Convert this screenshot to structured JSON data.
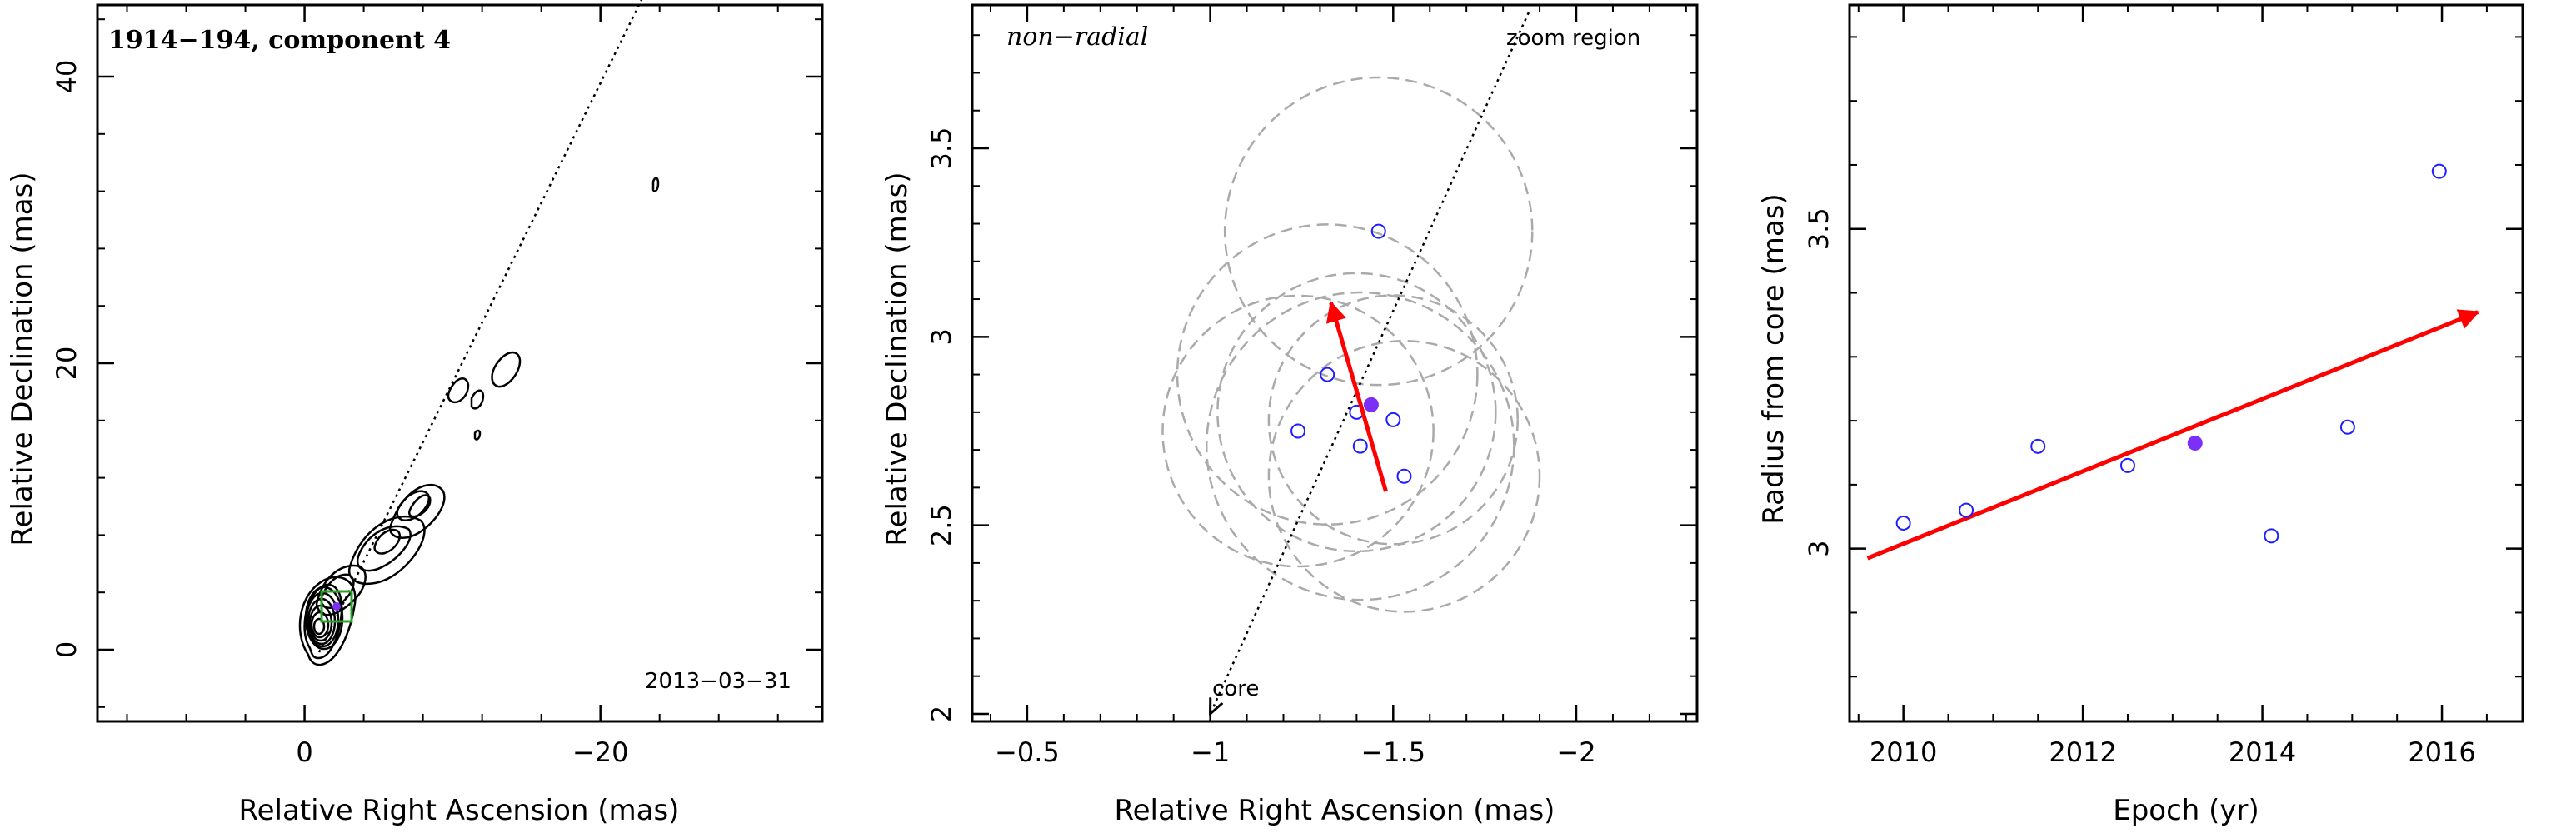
{
  "chart_data": [
    {
      "type": "contour",
      "title": "1914−194, component 4",
      "date": "2013−03−31",
      "xlabel": "Relative Right Ascension (mas)",
      "ylabel": "Relative Declination (mas)",
      "xlim": [
        14,
        -35
      ],
      "ylim": [
        -5,
        45
      ],
      "x_ticks": [
        0,
        -20
      ],
      "x_tick_labels": [
        "0",
        "−20"
      ],
      "y_ticks": [
        0,
        20,
        40
      ],
      "y_tick_labels": [
        "0",
        "20",
        "40"
      ],
      "component_position": [
        -1.44,
        2.82
      ],
      "zoom_box": {
        "x": [
          -0.5,
          -2.5
        ],
        "y": [
          2,
          4
        ]
      },
      "jet_axis": {
        "from": [
          0,
          0
        ],
        "to": [
          -22,
          45
        ]
      },
      "colors": {
        "contour": "#000000",
        "zoom_box": "#2ca02c",
        "component": "#7b2ff7"
      }
    },
    {
      "type": "scatter",
      "corner_label": "non−radial",
      "box_label": "zoom region",
      "core_label": "core",
      "xlabel": "Relative Right Ascension (mas)",
      "ylabel": "Relative Declination (mas)",
      "xlim": [
        -0.35,
        -2.33
      ],
      "ylim": [
        1.98,
        3.88
      ],
      "x_ticks": [
        -0.5,
        -1,
        -1.5,
        -2
      ],
      "x_tick_labels": [
        "−0.5",
        "−1",
        "−1.5",
        "−2"
      ],
      "y_ticks": [
        2,
        2.5,
        3,
        3.5
      ],
      "y_tick_labels": [
        "2",
        "2.5",
        "3",
        "3.5"
      ],
      "points": [
        {
          "x": -1.46,
          "y": 3.28
        },
        {
          "x": -1.32,
          "y": 2.9
        },
        {
          "x": -1.4,
          "y": 2.8
        },
        {
          "x": -1.24,
          "y": 2.75
        },
        {
          "x": -1.5,
          "y": 2.78
        },
        {
          "x": -1.41,
          "y": 2.71
        },
        {
          "x": -1.53,
          "y": 2.63
        }
      ],
      "mean_point": {
        "x": -1.44,
        "y": 2.82
      },
      "error_circles": [
        {
          "x": -1.46,
          "y": 3.28,
          "r": 0.42
        },
        {
          "x": -1.32,
          "y": 2.9,
          "r": 0.41
        },
        {
          "x": -1.4,
          "y": 2.8,
          "r": 0.38
        },
        {
          "x": -1.24,
          "y": 2.75,
          "r": 0.37
        },
        {
          "x": -1.5,
          "y": 2.78,
          "r": 0.34
        },
        {
          "x": -1.41,
          "y": 2.71,
          "r": 0.42
        },
        {
          "x": -1.53,
          "y": 2.63,
          "r": 0.37
        }
      ],
      "motion_arrow": {
        "from": [
          -1.48,
          2.59
        ],
        "to": [
          -1.33,
          3.09
        ]
      },
      "jet_axis": {
        "from": [
          -1.87,
          3.86
        ],
        "to": [
          -1.0,
          2.0
        ]
      },
      "colors": {
        "points": "#1f1fff",
        "mean": "#7b2ff7",
        "arrow": "#ff0000",
        "circles": "#aaaaaa"
      }
    },
    {
      "type": "scatter",
      "xlabel": "Epoch (yr)",
      "ylabel": "Radius from core (mas)",
      "xlim": [
        2009.4,
        2016.9
      ],
      "ylim": [
        2.73,
        3.85
      ],
      "x_ticks": [
        2010,
        2012,
        2014,
        2016
      ],
      "x_tick_labels": [
        "2010",
        "2012",
        "2014",
        "2016"
      ],
      "y_ticks": [
        3,
        3.5
      ],
      "y_tick_labels": [
        "3",
        "3.5"
      ],
      "points": [
        {
          "x": 2010.0,
          "y": 3.04
        },
        {
          "x": 2010.7,
          "y": 3.06
        },
        {
          "x": 2011.5,
          "y": 3.16
        },
        {
          "x": 2012.5,
          "y": 3.13
        },
        {
          "x": 2014.1,
          "y": 3.02
        },
        {
          "x": 2014.95,
          "y": 3.19
        },
        {
          "x": 2015.97,
          "y": 3.59
        }
      ],
      "mean_point": {
        "x": 2013.25,
        "y": 3.165
      },
      "fit_arrow": {
        "from": [
          2009.6,
          2.985
        ],
        "to": [
          2016.4,
          3.37
        ]
      },
      "colors": {
        "points": "#1f1fff",
        "mean": "#7b2ff7",
        "arrow": "#ff0000"
      }
    }
  ]
}
